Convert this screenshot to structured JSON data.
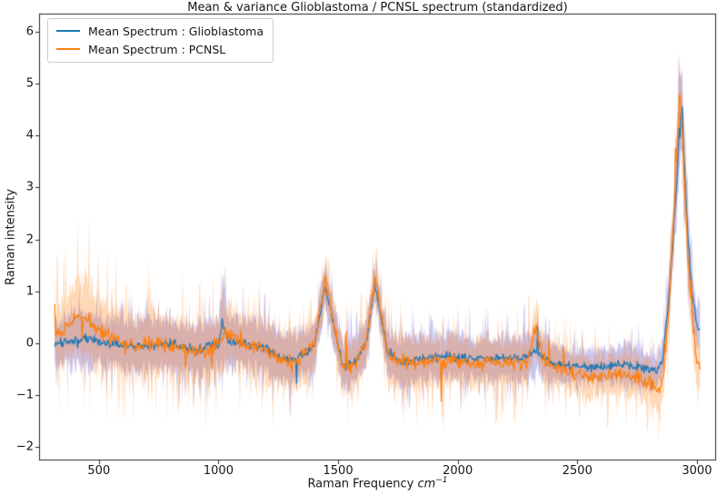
{
  "chart_data": {
    "type": "line",
    "title": "Mean & variance Glioblastoma / PCNSL spectrum (standardized)",
    "ylabel": "Raman intensity",
    "xlabel": {
      "prefix": "Raman Frequency",
      "unit": "cm",
      "exponent": "−1"
    },
    "xlim": [
      250,
      3080
    ],
    "ylim": [
      -2.26,
      6.35
    ],
    "xticks": [
      500,
      1000,
      1500,
      2000,
      2500,
      3000
    ],
    "yticks": [
      -2,
      -1,
      0,
      1,
      2,
      3,
      4,
      5,
      6
    ],
    "grid": false,
    "background": "#ffffff",
    "spine_color": "#262626",
    "tick_color": "#262626",
    "legend": {
      "location": "upper left"
    },
    "noise_seed": 1337,
    "x_sample_step": 3.2,
    "series": [
      {
        "name": "Mean Spectrum : Glioblastoma",
        "line_color": "#1f77b4",
        "band_color": "rgba(90,78,205,0.33)",
        "noise": {
          "mean_amp": 0.11,
          "spike_p": 0.978,
          "spike_amp": 0.6,
          "band_base": 0.55,
          "band_var": 0.75,
          "tail_p": 0.88,
          "tail_gain": 8
        },
        "points": [
          [
            315,
            0.0,
            0.5
          ],
          [
            400,
            0.05,
            0.55
          ],
          [
            460,
            0.1,
            0.55
          ],
          [
            520,
            0.0,
            0.5
          ],
          [
            620,
            -0.05,
            0.5
          ],
          [
            720,
            -0.05,
            0.5
          ],
          [
            820,
            0.0,
            0.55
          ],
          [
            910,
            -0.15,
            0.5
          ],
          [
            1000,
            0.0,
            0.52
          ],
          [
            1018,
            0.45,
            0.8
          ],
          [
            1040,
            0.05,
            0.55
          ],
          [
            1120,
            0.0,
            0.5
          ],
          [
            1200,
            -0.1,
            0.5
          ],
          [
            1270,
            -0.3,
            0.55
          ],
          [
            1340,
            -0.25,
            0.5
          ],
          [
            1400,
            -0.05,
            0.45
          ],
          [
            1445,
            1.1,
            0.4
          ],
          [
            1465,
            0.7,
            0.45
          ],
          [
            1520,
            -0.45,
            0.5
          ],
          [
            1575,
            -0.35,
            0.5
          ],
          [
            1620,
            0.1,
            0.45
          ],
          [
            1652,
            1.15,
            0.35
          ],
          [
            1672,
            0.7,
            0.4
          ],
          [
            1705,
            -0.15,
            0.45
          ],
          [
            1760,
            -0.35,
            0.5
          ],
          [
            1860,
            -0.3,
            0.5
          ],
          [
            1960,
            -0.25,
            0.48
          ],
          [
            2060,
            -0.3,
            0.45
          ],
          [
            2160,
            -0.3,
            0.45
          ],
          [
            2260,
            -0.3,
            0.45
          ],
          [
            2330,
            -0.15,
            0.5
          ],
          [
            2400,
            -0.4,
            0.38
          ],
          [
            2500,
            -0.45,
            0.35
          ],
          [
            2600,
            -0.45,
            0.35
          ],
          [
            2700,
            -0.38,
            0.42
          ],
          [
            2780,
            -0.5,
            0.38
          ],
          [
            2830,
            -0.55,
            0.35
          ],
          [
            2858,
            -0.25,
            0.38
          ],
          [
            2880,
            0.7,
            0.5
          ],
          [
            2900,
            2.0,
            0.6
          ],
          [
            2918,
            3.3,
            0.75
          ],
          [
            2930,
            4.55,
            0.9
          ],
          [
            2943,
            3.9,
            0.85
          ],
          [
            2958,
            2.4,
            0.7
          ],
          [
            2978,
            1.0,
            0.55
          ],
          [
            2998,
            0.4,
            0.45
          ],
          [
            3015,
            0.3,
            0.4
          ]
        ]
      },
      {
        "name": "Mean Spectrum : PCNSL",
        "line_color": "#ff7f0e",
        "band_color": "rgba(255,127,14,0.30)",
        "noise": {
          "mean_amp": 0.17,
          "spike_p": 0.97,
          "spike_amp": 0.7,
          "band_base": 0.5,
          "band_var": 0.8,
          "tail_p": 0.86,
          "tail_gain": 8
        },
        "points": [
          [
            315,
            0.15,
            0.65
          ],
          [
            360,
            0.3,
            0.7
          ],
          [
            415,
            0.55,
            0.8
          ],
          [
            455,
            0.45,
            0.85
          ],
          [
            495,
            0.25,
            0.85
          ],
          [
            560,
            0.1,
            0.7
          ],
          [
            650,
            -0.05,
            0.65
          ],
          [
            750,
            0.0,
            0.65
          ],
          [
            850,
            -0.1,
            0.62
          ],
          [
            950,
            -0.2,
            0.6
          ],
          [
            1025,
            0.18,
            0.65
          ],
          [
            1090,
            0.0,
            0.6
          ],
          [
            1180,
            -0.1,
            0.6
          ],
          [
            1270,
            -0.35,
            0.6
          ],
          [
            1340,
            -0.3,
            0.55
          ],
          [
            1400,
            0.0,
            0.5
          ],
          [
            1448,
            1.22,
            0.45
          ],
          [
            1470,
            0.65,
            0.5
          ],
          [
            1520,
            -0.5,
            0.55
          ],
          [
            1575,
            -0.4,
            0.5
          ],
          [
            1620,
            0.1,
            0.5
          ],
          [
            1655,
            1.3,
            0.4
          ],
          [
            1680,
            0.55,
            0.45
          ],
          [
            1712,
            -0.25,
            0.5
          ],
          [
            1790,
            -0.4,
            0.55
          ],
          [
            1890,
            -0.35,
            0.52
          ],
          [
            1990,
            -0.35,
            0.5
          ],
          [
            2090,
            -0.4,
            0.5
          ],
          [
            2190,
            -0.35,
            0.5
          ],
          [
            2290,
            -0.4,
            0.5
          ],
          [
            2328,
            0.35,
            0.55
          ],
          [
            2352,
            -0.3,
            0.5
          ],
          [
            2450,
            -0.55,
            0.45
          ],
          [
            2550,
            -0.65,
            0.42
          ],
          [
            2650,
            -0.6,
            0.42
          ],
          [
            2750,
            -0.65,
            0.42
          ],
          [
            2815,
            -0.78,
            0.42
          ],
          [
            2845,
            -1.0,
            0.45
          ],
          [
            2865,
            -0.4,
            0.5
          ],
          [
            2888,
            1.0,
            0.6
          ],
          [
            2908,
            2.9,
            0.7
          ],
          [
            2928,
            4.85,
            0.8
          ],
          [
            2942,
            3.7,
            0.8
          ],
          [
            2960,
            1.9,
            0.7
          ],
          [
            2982,
            0.3,
            0.6
          ],
          [
            3000,
            -0.3,
            0.55
          ],
          [
            3014,
            -0.45,
            0.5
          ]
        ]
      }
    ]
  }
}
